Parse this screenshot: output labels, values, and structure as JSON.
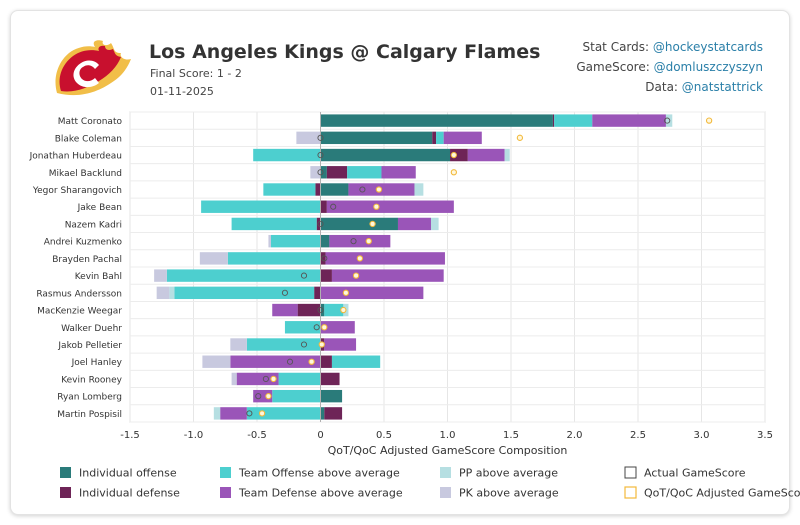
{
  "header": {
    "title": "Los Angeles Kings @ Calgary Flames",
    "final_score": "Final Score: 1 - 2",
    "date": "01-11-2025"
  },
  "credits": [
    {
      "label": "Stat Cards:",
      "handle": "@hockeystatcards"
    },
    {
      "label": "GameScore:",
      "handle": "@domluszczyszyn"
    },
    {
      "label": "Data:",
      "handle": "@natstattrick"
    }
  ],
  "colors": {
    "ind_off": "#2a7b7a",
    "ind_def": "#6e2457",
    "team_off": "#4dcfcf",
    "team_def": "#9a55b8",
    "pp": "#b6dfe2",
    "pk": "#c8c9df",
    "qot_marker": "#f2b93b",
    "brand_red": "#c8102e",
    "brand_gold": "#f1be48"
  },
  "chart_data": {
    "type": "bar",
    "orientation": "horizontal",
    "stacked": true,
    "xlabel": "QoT/QoC Adjusted GameScore Composition",
    "xlim": [
      -1.5,
      3.5
    ],
    "xticks": [
      "-1.5",
      "-1.0",
      "-0.5",
      "0",
      "0.5",
      "1.0",
      "1.5",
      "2.0",
      "2.5",
      "3.0",
      "3.5"
    ],
    "grid": true,
    "legend_position": "bottom",
    "categories": [
      "Matt Coronato",
      "Blake Coleman",
      "Jonathan Huberdeau",
      "Mikael Backlund",
      "Yegor Sharangovich",
      "Jake Bean",
      "Nazem Kadri",
      "Andrei Kuzmenko",
      "Brayden Pachal",
      "Kevin Bahl",
      "Rasmus Andersson",
      "MacKenzie Weegar",
      "Walker Duehr",
      "Jakob Pelletier",
      "Joel Hanley",
      "Kevin Rooney",
      "Ryan Lomberg",
      "Martin Pospisil"
    ],
    "series": [
      {
        "name": "Individual offense",
        "key": "ind_off",
        "values": [
          1.83,
          0.88,
          1.02,
          0.05,
          0.22,
          0.0,
          0.61,
          0.07,
          0.0,
          0.0,
          0.0,
          0.03,
          0.0,
          0.0,
          0.0,
          0.0,
          0.17,
          0.03
        ]
      },
      {
        "name": "Individual defense",
        "key": "ind_def",
        "values": [
          0.01,
          0.03,
          0.14,
          0.16,
          -0.04,
          0.05,
          -0.03,
          0.0,
          0.04,
          0.09,
          -0.05,
          -0.18,
          0.0,
          0.03,
          0.09,
          0.15,
          0.0,
          0.14
        ]
      },
      {
        "name": "Team Offense above average",
        "key": "team_off",
        "values": [
          0.3,
          0.06,
          -0.53,
          0.27,
          -0.41,
          -0.94,
          -0.67,
          -0.39,
          -0.73,
          -1.21,
          -1.1,
          0.15,
          -0.28,
          -0.58,
          0.38,
          -0.33,
          -0.38,
          -0.58
        ]
      },
      {
        "name": "Team Defense above average",
        "key": "team_def",
        "values": [
          0.58,
          0.3,
          0.29,
          0.27,
          0.52,
          1.0,
          0.26,
          0.48,
          0.94,
          0.88,
          0.81,
          -0.2,
          0.27,
          0.25,
          -0.71,
          -0.33,
          -0.15,
          -0.21
        ]
      },
      {
        "name": "PP above average",
        "key": "pp",
        "values": [
          0.05,
          0.0,
          0.04,
          0.0,
          0.07,
          0.0,
          0.06,
          0.0,
          0.0,
          0.0,
          -0.04,
          0.04,
          0.0,
          0.0,
          0.0,
          0.0,
          0.0,
          -0.05
        ]
      },
      {
        "name": "PK above average",
        "key": "pk",
        "values": [
          0.0,
          -0.19,
          0.0,
          -0.08,
          0.0,
          0.0,
          0.0,
          -0.02,
          -0.22,
          -0.1,
          -0.1,
          0.0,
          0.0,
          -0.13,
          -0.22,
          -0.04,
          0.0,
          0.0
        ]
      }
    ],
    "markers": [
      {
        "name": "Actual GameScore",
        "key": "actual",
        "values": [
          2.73,
          0.0,
          0.0,
          0.0,
          0.33,
          0.1,
          0.0,
          0.26,
          0.03,
          -0.13,
          -0.28,
          0.0,
          -0.03,
          -0.13,
          -0.24,
          -0.43,
          -0.49,
          -0.56
        ]
      },
      {
        "name": "QoT/QoC Adjusted GameScore",
        "key": "qot",
        "values": [
          3.06,
          1.57,
          1.05,
          1.05,
          0.46,
          0.44,
          0.41,
          0.38,
          0.31,
          0.28,
          0.2,
          0.18,
          0.03,
          0.01,
          -0.07,
          -0.37,
          -0.41,
          -0.46
        ]
      }
    ]
  }
}
